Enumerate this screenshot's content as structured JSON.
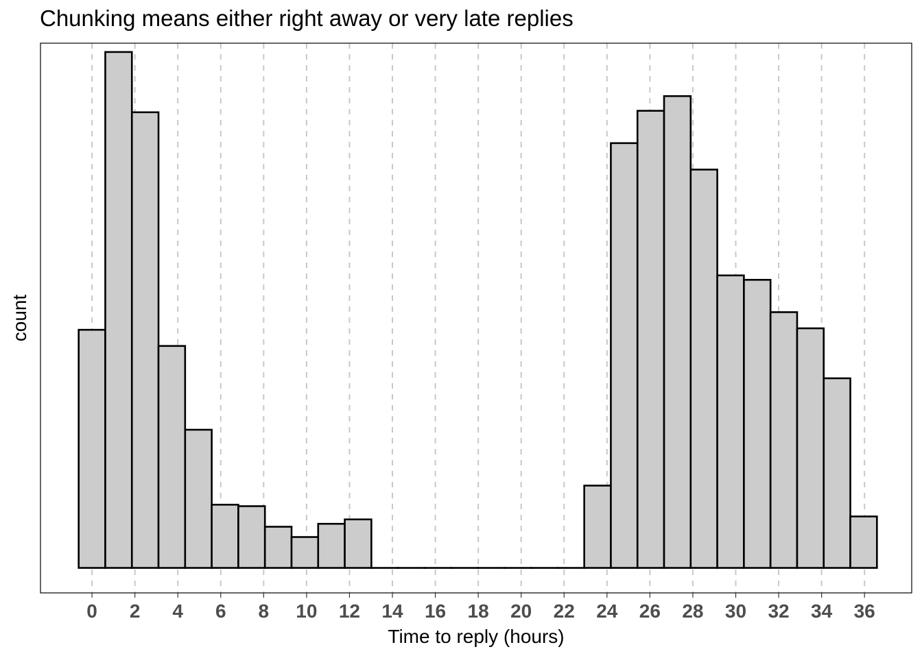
{
  "chart_data": {
    "type": "bar",
    "title": "Chunking means either right away or very late replies",
    "xlabel": "Time to reply (hours)",
    "ylabel": "count",
    "x_ticks": [
      0,
      2,
      4,
      6,
      8,
      10,
      12,
      14,
      16,
      18,
      20,
      22,
      24,
      26,
      28,
      30,
      32,
      34,
      36
    ],
    "xlim": [
      -2.4,
      38.2
    ],
    "ylim": [
      -1.7,
      35.7
    ],
    "y_tick_labels_shown": false,
    "grid": "vertical dashed at major ticks",
    "legend": "none",
    "bin_width": 1.24,
    "bins": [
      {
        "start": -0.62,
        "end": 0.62,
        "count": 16.2
      },
      {
        "start": 0.62,
        "end": 1.86,
        "count": 35.1
      },
      {
        "start": 1.86,
        "end": 3.1,
        "count": 31.0
      },
      {
        "start": 3.1,
        "end": 4.34,
        "count": 15.1
      },
      {
        "start": 4.34,
        "end": 5.58,
        "count": 9.4
      },
      {
        "start": 5.58,
        "end": 6.82,
        "count": 4.3
      },
      {
        "start": 6.82,
        "end": 8.06,
        "count": 4.2
      },
      {
        "start": 8.06,
        "end": 9.3,
        "count": 2.8
      },
      {
        "start": 9.3,
        "end": 10.54,
        "count": 2.1
      },
      {
        "start": 10.54,
        "end": 11.78,
        "count": 3.0
      },
      {
        "start": 11.78,
        "end": 13.02,
        "count": 3.3
      },
      {
        "start": 13.02,
        "end": 14.26,
        "count": 0
      },
      {
        "start": 14.26,
        "end": 15.5,
        "count": 0
      },
      {
        "start": 15.5,
        "end": 16.74,
        "count": 0
      },
      {
        "start": 16.74,
        "end": 17.98,
        "count": 0
      },
      {
        "start": 17.98,
        "end": 19.22,
        "count": 0
      },
      {
        "start": 19.22,
        "end": 20.46,
        "count": 0
      },
      {
        "start": 20.46,
        "end": 21.7,
        "count": 0
      },
      {
        "start": 21.7,
        "end": 22.94,
        "count": 0
      },
      {
        "start": 22.94,
        "end": 24.18,
        "count": 5.6
      },
      {
        "start": 24.18,
        "end": 25.42,
        "count": 28.9
      },
      {
        "start": 25.42,
        "end": 26.66,
        "count": 31.1
      },
      {
        "start": 26.66,
        "end": 27.9,
        "count": 32.1
      },
      {
        "start": 27.9,
        "end": 29.14,
        "count": 27.1
      },
      {
        "start": 29.14,
        "end": 30.38,
        "count": 19.9
      },
      {
        "start": 30.38,
        "end": 31.62,
        "count": 19.6
      },
      {
        "start": 31.62,
        "end": 32.86,
        "count": 17.4
      },
      {
        "start": 32.86,
        "end": 34.1,
        "count": 16.3
      },
      {
        "start": 34.1,
        "end": 35.34,
        "count": 12.9
      },
      {
        "start": 35.34,
        "end": 36.58,
        "count": 3.5
      }
    ],
    "colors": {
      "bar_fill": "#cccccc",
      "bar_stroke": "#000000",
      "grid": "#c8c8c8",
      "tick_label": "#4d4d4d"
    }
  }
}
